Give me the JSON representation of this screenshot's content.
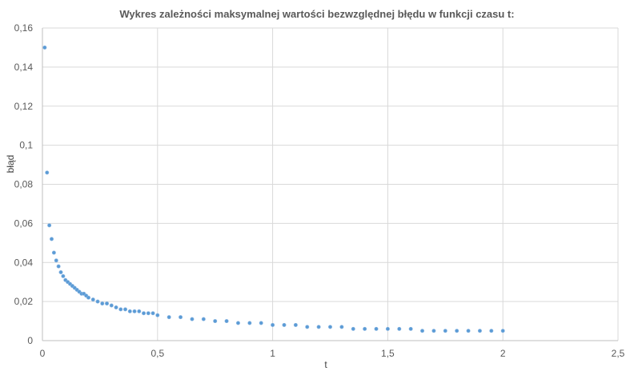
{
  "chart_data": {
    "type": "scatter",
    "title": "Wykres zależności maksymalnej wartości bezwzględnej błędu w funkcji czasu t:",
    "xlabel": "t",
    "ylabel": "błąd",
    "xlim": [
      0,
      2.5
    ],
    "ylim": [
      0,
      0.16
    ],
    "x_ticks": [
      0,
      0.5,
      1,
      1.5,
      2,
      2.5
    ],
    "x_tick_labels": [
      "0",
      "0,5",
      "1",
      "1,5",
      "2",
      "2,5"
    ],
    "y_ticks": [
      0,
      0.02,
      0.04,
      0.06,
      0.08,
      0.1,
      0.12,
      0.14,
      0.16
    ],
    "y_tick_labels": [
      "0",
      "0,02",
      "0,04",
      "0,06",
      "0,08",
      "0,1",
      "0,12",
      "0,14",
      "0,16"
    ],
    "grid": "vertical",
    "legend": "none",
    "marker_color": "#5b9bd5",
    "series": [
      {
        "x": [
          0.01,
          0.02,
          0.03,
          0.04,
          0.05,
          0.06,
          0.07,
          0.08,
          0.09,
          0.1,
          0.11,
          0.12,
          0.13,
          0.14,
          0.15,
          0.16,
          0.17,
          0.18,
          0.19,
          0.2,
          0.22,
          0.24,
          0.26,
          0.28,
          0.3,
          0.32,
          0.34,
          0.36,
          0.38,
          0.4,
          0.42,
          0.44,
          0.46,
          0.48,
          0.5,
          0.55,
          0.6,
          0.65,
          0.7,
          0.75,
          0.8,
          0.85,
          0.9,
          0.95,
          1.0,
          1.05,
          1.1,
          1.15,
          1.2,
          1.25,
          1.3,
          1.35,
          1.4,
          1.45,
          1.5,
          1.55,
          1.6,
          1.65,
          1.7,
          1.75,
          1.8,
          1.85,
          1.9,
          1.95,
          2.0
        ],
        "y": [
          0.15,
          0.086,
          0.059,
          0.052,
          0.045,
          0.041,
          0.038,
          0.035,
          0.033,
          0.031,
          0.03,
          0.029,
          0.028,
          0.027,
          0.026,
          0.025,
          0.024,
          0.024,
          0.023,
          0.022,
          0.021,
          0.02,
          0.019,
          0.019,
          0.018,
          0.017,
          0.016,
          0.016,
          0.015,
          0.015,
          0.015,
          0.014,
          0.014,
          0.014,
          0.013,
          0.012,
          0.012,
          0.011,
          0.011,
          0.01,
          0.01,
          0.009,
          0.009,
          0.009,
          0.008,
          0.008,
          0.008,
          0.007,
          0.007,
          0.007,
          0.007,
          0.006,
          0.006,
          0.006,
          0.006,
          0.006,
          0.006,
          0.005,
          0.005,
          0.005,
          0.005,
          0.005,
          0.005,
          0.005,
          0.005
        ]
      }
    ]
  }
}
